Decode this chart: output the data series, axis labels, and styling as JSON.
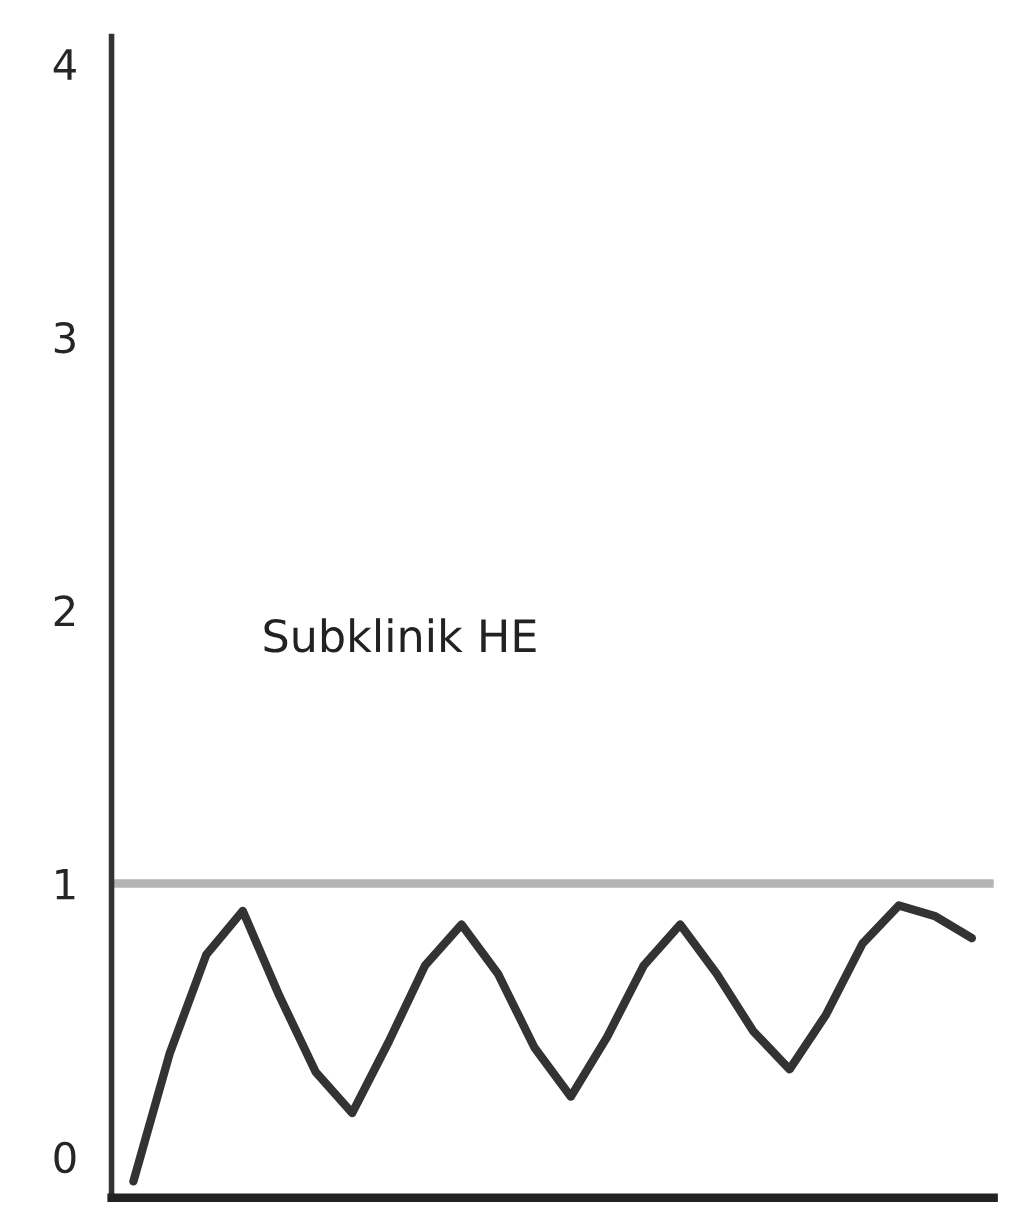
{
  "chart_data": {
    "type": "line",
    "categories": [
      null,
      null,
      null,
      null,
      null,
      null,
      null,
      null,
      null,
      null,
      null,
      null,
      null,
      null,
      null,
      null,
      null,
      null,
      null,
      null,
      null,
      null,
      null,
      null
    ],
    "series": [
      {
        "color": "#333333",
        "values": [
          -0.09,
          0.38,
          0.74,
          0.9,
          0.59,
          0.31,
          0.16,
          0.42,
          0.7,
          0.85,
          0.67,
          0.4,
          0.22,
          0.44,
          0.7,
          0.85,
          0.67,
          0.46,
          0.32,
          0.52,
          0.78,
          0.92,
          0.88,
          0.8
        ]
      }
    ],
    "ylim": [
      -0.15,
      4.1
    ],
    "yticks": [
      0,
      1,
      2,
      3,
      4
    ],
    "tick_labels": "y",
    "grid": false,
    "legend": false,
    "marker": "none",
    "line_style": "solid",
    "ref_lines": [
      {
        "axis": "y",
        "value": 1,
        "label": null,
        "color": "#b4b4b4"
      }
    ],
    "annotations": [
      "Subklinik HE"
    ]
  }
}
